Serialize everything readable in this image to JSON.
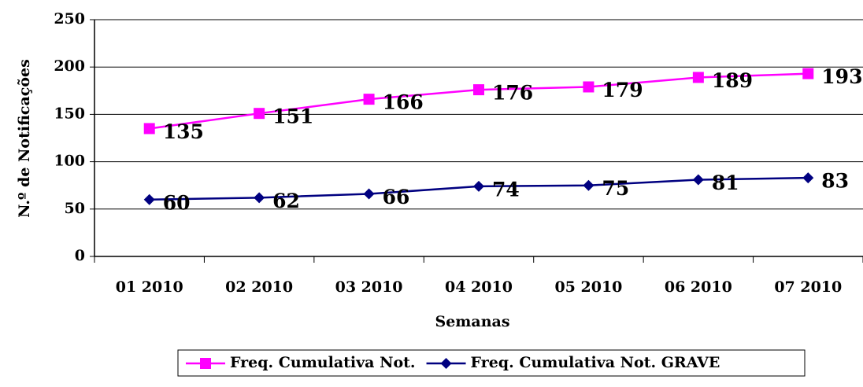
{
  "chart_data": {
    "type": "line",
    "x_label": "Semanas",
    "y_label": "N.º de Notificações",
    "categories": [
      "01 2010",
      "02 2010",
      "03 2010",
      "04 2010",
      "05 2010",
      "06 2010",
      "07 2010"
    ],
    "series": [
      {
        "name": "Freq. Cumulativa Not.",
        "color": "#ff00ff",
        "marker": "square",
        "values": [
          135,
          151,
          166,
          176,
          179,
          189,
          193
        ]
      },
      {
        "name": "Freq. Cumulativa Not. GRAVE",
        "color": "#000080",
        "marker": "diamond",
        "values": [
          60,
          62,
          66,
          74,
          75,
          81,
          83
        ]
      }
    ],
    "ylim": [
      0,
      250
    ],
    "yticks": [
      0,
      50,
      100,
      150,
      200,
      250
    ],
    "grid": true,
    "legend": "bottom"
  }
}
